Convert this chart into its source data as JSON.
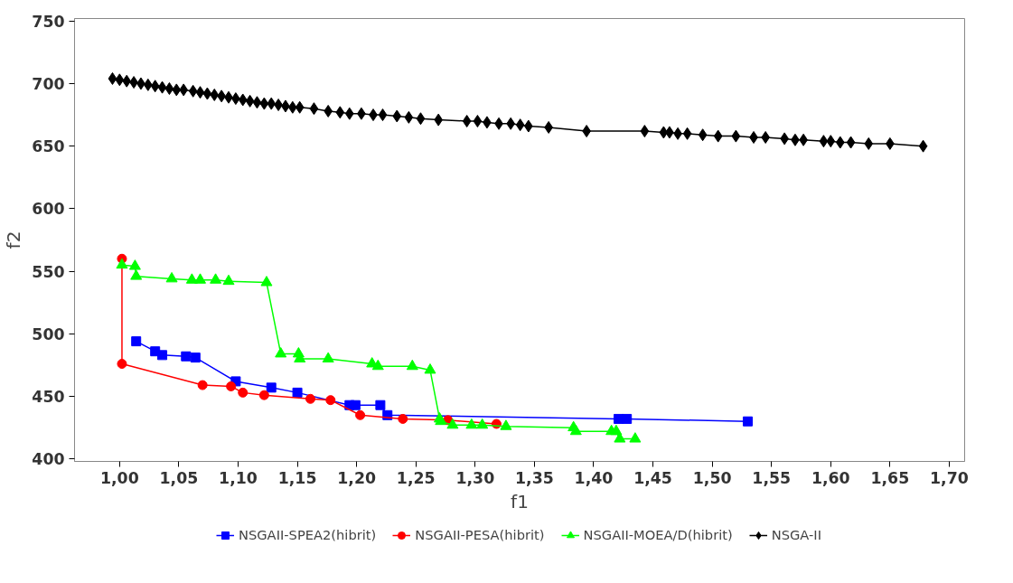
{
  "chart_data": {
    "type": "line",
    "xlabel": "f1",
    "ylabel": "f2",
    "xlim": [
      0.962,
      1.713
    ],
    "ylim": [
      398,
      752
    ],
    "xticks": [
      {
        "value": 1.0,
        "label": "1,00"
      },
      {
        "value": 1.05,
        "label": "1,05"
      },
      {
        "value": 1.1,
        "label": "1,10"
      },
      {
        "value": 1.15,
        "label": "1,15"
      },
      {
        "value": 1.2,
        "label": "1,20"
      },
      {
        "value": 1.25,
        "label": "1,25"
      },
      {
        "value": 1.3,
        "label": "1,30"
      },
      {
        "value": 1.35,
        "label": "1,35"
      },
      {
        "value": 1.4,
        "label": "1,40"
      },
      {
        "value": 1.45,
        "label": "1,45"
      },
      {
        "value": 1.5,
        "label": "1,50"
      },
      {
        "value": 1.55,
        "label": "1,55"
      },
      {
        "value": 1.6,
        "label": "1,60"
      },
      {
        "value": 1.65,
        "label": "1,65"
      },
      {
        "value": 1.7,
        "label": "1,70"
      }
    ],
    "yticks": [
      400,
      450,
      500,
      550,
      600,
      650,
      700,
      750
    ],
    "grid": false,
    "legend": "bottom",
    "series": [
      {
        "name": "NSGAII-SPEA2(hibrit)",
        "color": "#0000ff",
        "marker": "square",
        "x": [
          1.014,
          1.03,
          1.036,
          1.056,
          1.064,
          1.098,
          1.128,
          1.15,
          1.194,
          1.199,
          1.22,
          1.226,
          1.421,
          1.428,
          1.53
        ],
        "values": [
          494,
          486,
          483,
          482,
          481,
          462,
          457,
          453,
          443,
          443,
          443,
          435,
          432,
          432,
          430
        ]
      },
      {
        "name": "NSGAII-PESA(hibrit)",
        "color": "#ff0000",
        "marker": "circle",
        "x": [
          1.002,
          1.002,
          1.07,
          1.094,
          1.104,
          1.122,
          1.161,
          1.178,
          1.203,
          1.239,
          1.277,
          1.318
        ],
        "values": [
          560,
          476,
          459,
          458,
          453,
          451,
          448,
          447,
          435,
          432,
          431,
          428
        ]
      },
      {
        "name": "NSGAII-MOEA/D(hibrit)",
        "color": "#00ff00",
        "marker": "triangle",
        "x": [
          1.002,
          1.013,
          1.014,
          1.044,
          1.061,
          1.068,
          1.081,
          1.092,
          1.124,
          1.136,
          1.151,
          1.152,
          1.176,
          1.213,
          1.218,
          1.247,
          1.262,
          1.27,
          1.271,
          1.281,
          1.297,
          1.306,
          1.326,
          1.383,
          1.385,
          1.415,
          1.419,
          1.422,
          1.435
        ],
        "values": [
          555,
          554,
          546,
          544,
          543,
          543,
          543,
          542,
          541,
          484,
          484,
          480,
          480,
          476,
          474,
          474,
          471,
          432,
          430,
          427,
          427,
          427,
          426,
          425,
          422,
          422,
          422,
          416,
          416
        ]
      },
      {
        "name": "NSGA-II",
        "color": "#000000",
        "marker": "diamond",
        "x": [
          0.994,
          1.0,
          1.006,
          1.012,
          1.018,
          1.024,
          1.03,
          1.036,
          1.042,
          1.048,
          1.054,
          1.062,
          1.068,
          1.074,
          1.08,
          1.086,
          1.092,
          1.098,
          1.104,
          1.11,
          1.116,
          1.122,
          1.128,
          1.134,
          1.14,
          1.146,
          1.152,
          1.164,
          1.176,
          1.186,
          1.194,
          1.204,
          1.214,
          1.222,
          1.234,
          1.244,
          1.254,
          1.269,
          1.293,
          1.302,
          1.31,
          1.32,
          1.33,
          1.338,
          1.345,
          1.362,
          1.394,
          1.443,
          1.459,
          1.464,
          1.471,
          1.479,
          1.492,
          1.505,
          1.52,
          1.535,
          1.545,
          1.561,
          1.57,
          1.577,
          1.594,
          1.6,
          1.608,
          1.617,
          1.632,
          1.65,
          1.678
        ],
        "values": [
          704,
          703,
          702,
          701,
          700,
          699,
          698,
          697,
          696,
          695,
          695,
          694,
          693,
          692,
          691,
          690,
          689,
          688,
          687,
          686,
          685,
          684,
          684,
          683,
          682,
          681,
          681,
          680,
          678,
          677,
          676,
          676,
          675,
          675,
          674,
          673,
          672,
          671,
          670,
          670,
          669,
          668,
          668,
          667,
          666,
          665,
          662,
          662,
          661,
          661,
          660,
          660,
          659,
          658,
          658,
          657,
          657,
          656,
          655,
          655,
          654,
          654,
          653,
          653,
          652,
          652,
          650
        ]
      }
    ]
  }
}
